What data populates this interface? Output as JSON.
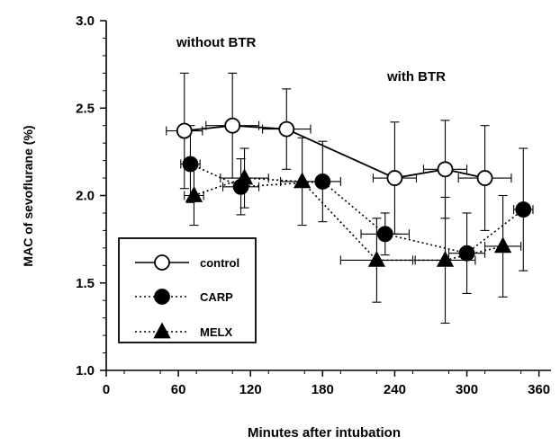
{
  "chart_data": {
    "type": "scatter",
    "xlabel": "Minutes after intubation",
    "ylabel": "MAC of sevoflurane (%)",
    "xlim": [
      0,
      370
    ],
    "ylim": [
      1.0,
      3.0
    ],
    "xticks": [
      "0",
      "60",
      "120",
      "180",
      "240",
      "300",
      "360"
    ],
    "yticks": [
      "1.0",
      "1.5",
      "2.0",
      "2.5",
      "3.0"
    ],
    "annotations": [
      "without BTR",
      "with BTR"
    ],
    "legend_position": "bottom-left",
    "series": [
      {
        "name": "control",
        "marker": "open-circle",
        "line": "solid",
        "points": [
          {
            "x": 65,
            "y": 2.37,
            "yerr": 0.33,
            "xerr": 15
          },
          {
            "x": 105,
            "y": 2.4,
            "yerr": 0.3,
            "xerr": 22
          },
          {
            "x": 150,
            "y": 2.38,
            "yerr": 0.23,
            "xerr": 20
          },
          {
            "x": 240,
            "y": 2.1,
            "yerr": 0.32,
            "xerr": 18
          },
          {
            "x": 282,
            "y": 2.15,
            "yerr": 0.28,
            "xerr": 18
          },
          {
            "x": 315,
            "y": 2.1,
            "yerr": 0.3,
            "xerr": 22
          }
        ]
      },
      {
        "name": "CARP",
        "marker": "filled-circle",
        "line": "dotted",
        "points": [
          {
            "x": 70,
            "y": 2.18,
            "yerr": 0.22,
            "xerr": 8
          },
          {
            "x": 112,
            "y": 2.05,
            "yerr": 0.16,
            "xerr": 15
          },
          {
            "x": 180,
            "y": 2.08,
            "yerr": 0.23,
            "xerr": 15
          },
          {
            "x": 232,
            "y": 1.78,
            "yerr": 0.12,
            "xerr": 20
          },
          {
            "x": 300,
            "y": 1.67,
            "yerr": 0.23,
            "xerr": 15
          },
          {
            "x": 347,
            "y": 1.92,
            "yerr": 0.35,
            "xerr": 8
          }
        ]
      },
      {
        "name": "MELX",
        "marker": "filled-triangle",
        "line": "dotted",
        "points": [
          {
            "x": 73,
            "y": 2.0,
            "yerr": 0.17,
            "xerr": 8
          },
          {
            "x": 115,
            "y": 2.1,
            "yerr": 0.17,
            "xerr": 20
          },
          {
            "x": 163,
            "y": 2.08,
            "yerr": 0.25,
            "xerr": 18
          },
          {
            "x": 225,
            "y": 1.63,
            "yerr": 0.24,
            "xerr": 30
          },
          {
            "x": 282,
            "y": 1.63,
            "yerr": 0.36,
            "xerr": 25
          },
          {
            "x": 330,
            "y": 1.71,
            "yerr": 0.29,
            "xerr": 15
          }
        ]
      }
    ]
  }
}
